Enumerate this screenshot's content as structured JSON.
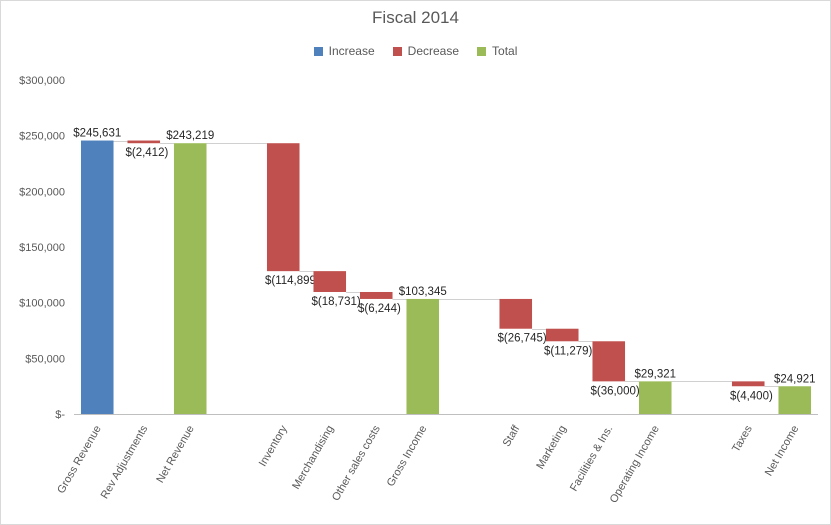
{
  "chart_data": {
    "type": "bar",
    "subtype": "waterfall",
    "title": "Fiscal 2014",
    "legend": {
      "placement": "top",
      "entries": [
        {
          "name": "Increase",
          "color": "#4f81bd"
        },
        {
          "name": "Decrease",
          "color": "#c0504d"
        },
        {
          "name": "Total",
          "color": "#9bbb59"
        }
      ]
    },
    "y_axis": {
      "ylim": [
        0,
        300000
      ],
      "ticks": [
        0,
        50000,
        100000,
        150000,
        200000,
        250000,
        300000
      ],
      "tick_labels": [
        "$-",
        "$50,000",
        "$100,000",
        "$150,000",
        "$200,000",
        "$250,000",
        "$300,000"
      ]
    },
    "grid": false,
    "categories": [
      "Gross Revenue",
      "Rev Adjustments",
      "Net Revenue",
      "",
      "Inventory",
      "Merchandising",
      "Other sales costs",
      "Gross Income",
      "",
      "Staff",
      "Marketing",
      "Facilities & Ins.",
      "Operating Income",
      "",
      "Taxes",
      "Net Income"
    ],
    "bars": [
      {
        "category": "Gross Revenue",
        "kind": "Increase",
        "from": 0,
        "to": 245631,
        "label": "$245,631"
      },
      {
        "category": "Rev Adjustments",
        "kind": "Decrease",
        "from": 245631,
        "to": 243219,
        "label": "$(2,412)"
      },
      {
        "category": "Net Revenue",
        "kind": "Total",
        "from": 0,
        "to": 243219,
        "label": "$243,219"
      },
      {
        "category": "",
        "kind": "Blank"
      },
      {
        "category": "Inventory",
        "kind": "Decrease",
        "from": 243219,
        "to": 128320,
        "label": "$(114,899)"
      },
      {
        "category": "Merchandising",
        "kind": "Decrease",
        "from": 128320,
        "to": 109589,
        "label": "$(18,731)"
      },
      {
        "category": "Other sales costs",
        "kind": "Decrease",
        "from": 109589,
        "to": 103345,
        "label": "$(6,244)"
      },
      {
        "category": "Gross Income",
        "kind": "Total",
        "from": 0,
        "to": 103345,
        "label": "$103,345"
      },
      {
        "category": "",
        "kind": "Blank"
      },
      {
        "category": "Staff",
        "kind": "Decrease",
        "from": 103345,
        "to": 76600,
        "label": "$(26,745)"
      },
      {
        "category": "Marketing",
        "kind": "Decrease",
        "from": 76600,
        "to": 65321,
        "label": "$(11,279)"
      },
      {
        "category": "Facilities & Ins.",
        "kind": "Decrease",
        "from": 65321,
        "to": 29321,
        "label": "$(36,000)"
      },
      {
        "category": "Operating Income",
        "kind": "Total",
        "from": 0,
        "to": 29321,
        "label": "$29,321"
      },
      {
        "category": "",
        "kind": "Blank"
      },
      {
        "category": "Taxes",
        "kind": "Decrease",
        "from": 29321,
        "to": 24921,
        "label": "$(4,400)"
      },
      {
        "category": "Net Income",
        "kind": "Total",
        "from": 0,
        "to": 24921,
        "label": "$24,921"
      }
    ]
  }
}
